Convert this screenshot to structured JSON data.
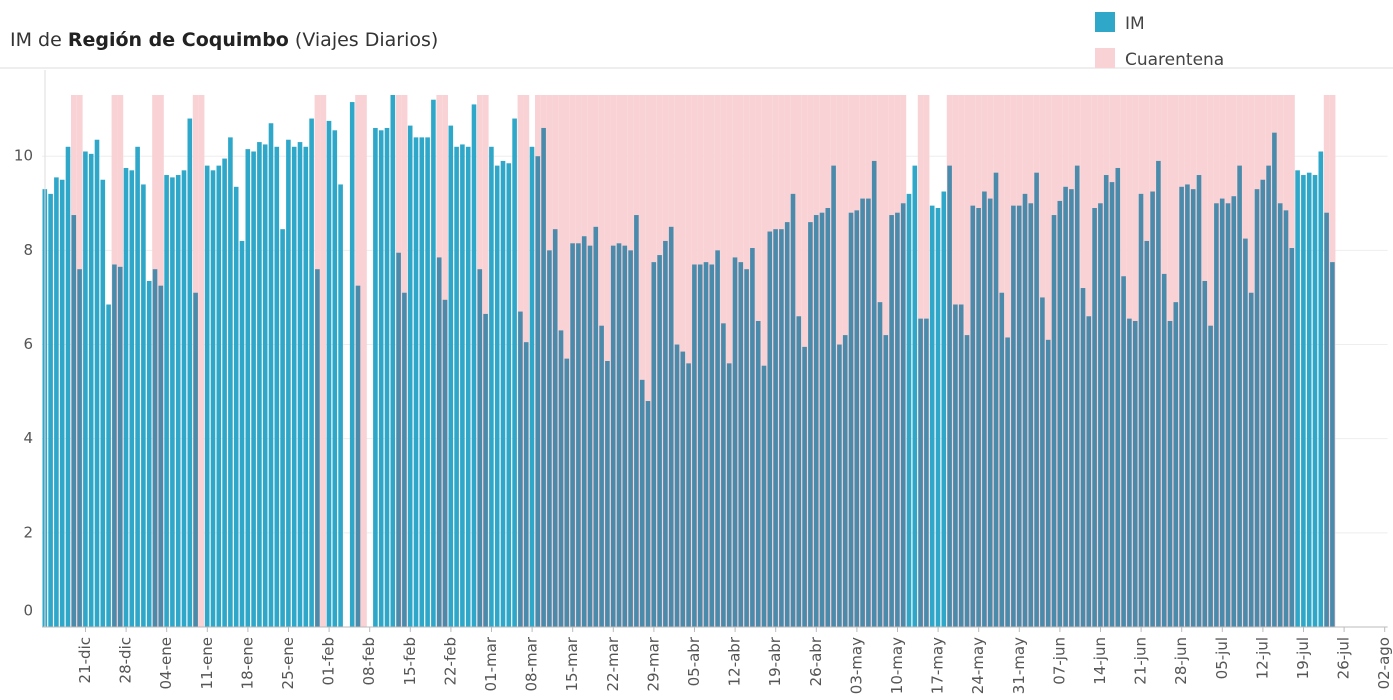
{
  "chart_data": {
    "type": "bar",
    "title": {
      "prefix": "IM de",
      "region": "Región de Coquimbo",
      "suffix": "(Viajes Diarios)"
    },
    "categories": [
      null,
      null,
      null,
      null,
      null,
      null,
      null,
      "21-dic",
      null,
      null,
      null,
      null,
      null,
      null,
      "28-dic",
      null,
      null,
      null,
      null,
      null,
      null,
      "04-ene",
      null,
      null,
      null,
      null,
      null,
      null,
      "11-ene",
      null,
      null,
      null,
      null,
      null,
      null,
      "18-ene",
      null,
      null,
      null,
      null,
      null,
      null,
      "25-ene",
      null,
      null,
      null,
      null,
      null,
      null,
      "01-feb",
      null,
      null,
      null,
      null,
      null,
      null,
      "08-feb",
      null,
      null,
      null,
      null,
      null,
      null,
      "15-feb",
      null,
      null,
      null,
      null,
      null,
      null,
      "22-feb",
      null,
      null,
      null,
      null,
      null,
      null,
      "01-mar",
      null,
      null,
      null,
      null,
      null,
      null,
      "08-mar",
      null,
      null,
      null,
      null,
      null,
      null,
      "15-mar",
      null,
      null,
      null,
      null,
      null,
      null,
      "22-mar",
      null,
      null,
      null,
      null,
      null,
      null,
      "29-mar",
      null,
      null,
      null,
      null,
      null,
      null,
      "05-abr",
      null,
      null,
      null,
      null,
      null,
      null,
      "12-abr",
      null,
      null,
      null,
      null,
      null,
      null,
      "19-abr",
      null,
      null,
      null,
      null,
      null,
      null,
      "26-abr",
      null,
      null,
      null,
      null,
      null,
      null,
      "03-may",
      null,
      null,
      null,
      null,
      null,
      null,
      "10-may",
      null,
      null,
      null,
      null,
      null,
      null,
      "17-may",
      null,
      null,
      null,
      null,
      null,
      null,
      "24-may",
      null,
      null,
      null,
      null,
      null,
      null,
      "31-may",
      null,
      null,
      null,
      null,
      null,
      null,
      "07-jun",
      null,
      null,
      null,
      null,
      null,
      null,
      "14-jun",
      null,
      null,
      null,
      null,
      null,
      null,
      "21-jun",
      null,
      null,
      null,
      null,
      null,
      null,
      "28-jun",
      null,
      null,
      null,
      null,
      null,
      null,
      "05-jul",
      null,
      null,
      null,
      null,
      null,
      null,
      "12-jul",
      null,
      null,
      null,
      null,
      null,
      null,
      "19-jul",
      null,
      null,
      null,
      null,
      null,
      null,
      "26-jul",
      null,
      null,
      null,
      null,
      null,
      null,
      "02-ago"
    ],
    "series": [
      {
        "name": "IM",
        "color": "#2ea7c9",
        "quarantine_color": "#4a8bab",
        "values": [
          9.3,
          9.2,
          9.55,
          9.5,
          10.2,
          8.75,
          7.6,
          10.1,
          10.05,
          10.35,
          9.5,
          6.85,
          7.7,
          7.65,
          9.75,
          9.7,
          10.2,
          9.4,
          7.35,
          7.6,
          7.25,
          9.6,
          9.55,
          9.6,
          9.7,
          10.8,
          7.1,
          null,
          9.8,
          9.7,
          9.8,
          9.95,
          10.4,
          9.35,
          8.2,
          10.15,
          10.1,
          10.3,
          10.25,
          10.7,
          10.2,
          8.45,
          10.35,
          10.2,
          10.3,
          10.2,
          10.8,
          7.6,
          null,
          10.75,
          10.55,
          9.4,
          null,
          11.15,
          7.25,
          null,
          null,
          10.6,
          10.55,
          10.6,
          11.3,
          7.95,
          7.1,
          10.65,
          10.4,
          10.4,
          10.4,
          11.2,
          7.85,
          6.95,
          10.65,
          10.2,
          10.25,
          10.2,
          11.1,
          7.6,
          6.65,
          10.2,
          9.8,
          9.9,
          9.85,
          10.8,
          6.7,
          6.05,
          10.2,
          10.0,
          10.6,
          8.0,
          8.45,
          6.3,
          5.7,
          8.15,
          8.15,
          8.3,
          8.1,
          8.5,
          6.4,
          5.65,
          8.1,
          8.15,
          8.1,
          8.0,
          8.75,
          5.25,
          4.8,
          7.75,
          7.9,
          8.2,
          8.5,
          6.0,
          5.85,
          5.6,
          7.7,
          7.7,
          7.75,
          7.7,
          8.0,
          6.45,
          5.6,
          7.85,
          7.75,
          7.6,
          8.05,
          6.5,
          5.55,
          8.4,
          8.45,
          8.45,
          8.6,
          9.2,
          6.6,
          5.95,
          8.6,
          8.75,
          8.8,
          8.9,
          9.8,
          6.0,
          6.2,
          8.8,
          8.85,
          9.1,
          9.1,
          9.9,
          6.9,
          6.2,
          8.75,
          8.8,
          9.0,
          9.2,
          9.8,
          6.55,
          6.55,
          8.95,
          8.9,
          9.25,
          9.8,
          6.85,
          6.85,
          6.2,
          8.95,
          8.9,
          9.25,
          9.1,
          9.65,
          7.1,
          6.15,
          8.95,
          8.95,
          9.2,
          9.0,
          9.65,
          7.0,
          6.1,
          8.75,
          9.05,
          9.35,
          9.3,
          9.8,
          7.2,
          6.6,
          8.9,
          9.0,
          9.6,
          9.45,
          9.75,
          7.45,
          6.55,
          6.5,
          9.2,
          8.2,
          9.25,
          9.9,
          7.5,
          6.5,
          6.9,
          9.35,
          9.4,
          9.3,
          9.6,
          7.35,
          6.4,
          9.0,
          9.1,
          9.0,
          9.15,
          9.8,
          8.25,
          7.1,
          9.3,
          9.5,
          9.8,
          10.5,
          9.0,
          8.85,
          8.05,
          9.7,
          9.6,
          9.65,
          9.6,
          10.1,
          8.8,
          7.75,
          null,
          null,
          null,
          null,
          null,
          null,
          null,
          null,
          null
        ]
      },
      {
        "name": "Cuarentena",
        "color": "#f9d2d5",
        "band": true,
        "values": [
          null,
          null,
          null,
          null,
          null,
          11.3,
          11.3,
          null,
          null,
          null,
          null,
          null,
          11.3,
          11.3,
          null,
          null,
          null,
          null,
          null,
          11.3,
          11.3,
          null,
          null,
          null,
          null,
          null,
          11.3,
          11.3,
          null,
          null,
          null,
          null,
          null,
          null,
          null,
          null,
          null,
          null,
          null,
          null,
          null,
          null,
          null,
          null,
          null,
          null,
          null,
          11.3,
          11.3,
          null,
          null,
          null,
          null,
          null,
          11.3,
          11.3,
          null,
          null,
          null,
          null,
          null,
          11.3,
          11.3,
          null,
          null,
          null,
          null,
          null,
          11.3,
          11.3,
          null,
          null,
          null,
          null,
          null,
          11.3,
          11.3,
          null,
          null,
          null,
          null,
          null,
          11.3,
          11.3,
          null,
          11.3,
          11.3,
          11.3,
          11.3,
          11.3,
          11.3,
          11.3,
          11.3,
          11.3,
          11.3,
          11.3,
          11.3,
          11.3,
          11.3,
          11.3,
          11.3,
          11.3,
          11.3,
          11.3,
          11.3,
          11.3,
          11.3,
          11.3,
          11.3,
          11.3,
          11.3,
          11.3,
          11.3,
          11.3,
          11.3,
          11.3,
          11.3,
          11.3,
          11.3,
          11.3,
          11.3,
          11.3,
          11.3,
          11.3,
          11.3,
          11.3,
          11.3,
          11.3,
          11.3,
          11.3,
          11.3,
          11.3,
          11.3,
          11.3,
          11.3,
          11.3,
          11.3,
          11.3,
          11.3,
          11.3,
          11.3,
          11.3,
          11.3,
          11.3,
          11.3,
          11.3,
          11.3,
          11.3,
          11.3,
          null,
          null,
          11.3,
          11.3,
          null,
          null,
          null,
          11.3,
          11.3,
          11.3,
          11.3,
          11.3,
          11.3,
          11.3,
          11.3,
          11.3,
          11.3,
          11.3,
          11.3,
          11.3,
          11.3,
          11.3,
          11.3,
          11.3,
          11.3,
          11.3,
          11.3,
          11.3,
          11.3,
          11.3,
          11.3,
          11.3,
          11.3,
          11.3,
          11.3,
          11.3,
          11.3,
          11.3,
          11.3,
          11.3,
          11.3,
          11.3,
          11.3,
          11.3,
          11.3,
          11.3,
          11.3,
          11.3,
          11.3,
          11.3,
          11.3,
          11.3,
          11.3,
          11.3,
          11.3,
          11.3,
          11.3,
          11.3,
          11.3,
          11.3,
          11.3,
          11.3,
          11.3,
          11.3,
          11.3,
          11.3,
          11.3,
          null,
          null,
          null,
          null,
          null,
          11.3,
          11.3,
          null,
          null,
          null,
          null,
          null,
          null,
          null,
          null,
          null
        ]
      }
    ],
    "ylim": [
      0,
      11.3
    ],
    "yticks": [
      0,
      2,
      4,
      6,
      8,
      10
    ],
    "grid": true,
    "legend": "top-right"
  }
}
